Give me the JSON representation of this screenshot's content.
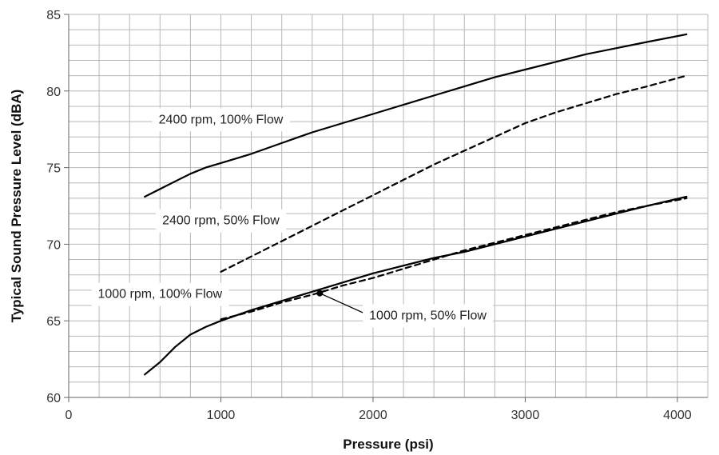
{
  "chart_data": {
    "type": "line",
    "xlabel": "Pressure (psi)",
    "ylabel": "Typical Sound Pressure Level (dBA)",
    "xlim": [
      0,
      4200
    ],
    "ylim": [
      60,
      85
    ],
    "x_ticks": [
      0,
      1000,
      2000,
      3000,
      4000
    ],
    "y_ticks": [
      60,
      65,
      70,
      75,
      80,
      85
    ],
    "x_tick_labels": [
      "0",
      "1000",
      "2000",
      "3000",
      "4000"
    ],
    "y_tick_labels": [
      "60",
      "65",
      "70",
      "75",
      "80",
      "85"
    ],
    "grid": true,
    "minor_grid": {
      "x_step": 200,
      "y_step": 1
    },
    "legend": "none",
    "series": [
      {
        "name": "2400 rpm, 100% Flow",
        "style": "solid",
        "color": "#000000",
        "x": [
          500,
          600,
          700,
          800,
          900,
          1000,
          1200,
          1400,
          1600,
          1800,
          2000,
          2200,
          2400,
          2600,
          2800,
          3000,
          3200,
          3400,
          3600,
          3800,
          4060
        ],
        "y": [
          73.1,
          73.6,
          74.1,
          74.6,
          75.0,
          75.3,
          75.9,
          76.6,
          77.3,
          77.9,
          78.5,
          79.1,
          79.7,
          80.3,
          80.9,
          81.4,
          81.9,
          82.4,
          82.8,
          83.2,
          83.7
        ]
      },
      {
        "name": "2400 rpm, 50% Flow",
        "style": "dashed",
        "color": "#000000",
        "x": [
          1000,
          1200,
          1400,
          1600,
          1800,
          2000,
          2200,
          2400,
          2600,
          2800,
          3000,
          3200,
          3400,
          3600,
          3800,
          4060
        ],
        "y": [
          68.2,
          69.2,
          70.2,
          71.2,
          72.2,
          73.2,
          74.2,
          75.2,
          76.1,
          77.0,
          77.9,
          78.6,
          79.2,
          79.8,
          80.3,
          81.0
        ]
      },
      {
        "name": "1000 rpm, 100% Flow",
        "style": "solid",
        "color": "#000000",
        "x": [
          500,
          600,
          700,
          800,
          900,
          1000,
          1200,
          1400,
          1600,
          1800,
          2000,
          2200,
          2400,
          2600,
          2800,
          3000,
          3200,
          3400,
          3600,
          3800,
          4060
        ],
        "y": [
          61.5,
          62.3,
          63.3,
          64.1,
          64.6,
          65.0,
          65.7,
          66.3,
          66.9,
          67.5,
          68.1,
          68.6,
          69.1,
          69.5,
          70.0,
          70.5,
          71.0,
          71.5,
          72.0,
          72.5,
          73.1
        ]
      },
      {
        "name": "1000 rpm, 50% Flow",
        "style": "dashed",
        "color": "#000000",
        "x": [
          1000,
          1200,
          1400,
          1600,
          1800,
          2000,
          2200,
          2400,
          2600,
          2800,
          3000,
          3200,
          3400,
          3600,
          3800,
          4060
        ],
        "y": [
          65.1,
          65.6,
          66.2,
          66.7,
          67.3,
          67.8,
          68.4,
          69.0,
          69.6,
          70.1,
          70.6,
          71.1,
          71.6,
          72.1,
          72.5,
          73.0
        ]
      }
    ],
    "annotations": [
      {
        "text": "2400 rpm, 100% Flow",
        "x": 1000,
        "y": 78.2,
        "anchor": "middle"
      },
      {
        "text": "2400 rpm, 50% Flow",
        "x": 1000,
        "y": 71.6,
        "anchor": "middle"
      },
      {
        "text": "1000 rpm, 100% Flow",
        "x": 600,
        "y": 66.8,
        "anchor": "middle"
      },
      {
        "text": "1000 rpm, 50% Flow",
        "x": 2360,
        "y": 65.4,
        "anchor": "middle",
        "pointer": {
          "x": 1650,
          "y": 66.8
        }
      }
    ]
  }
}
